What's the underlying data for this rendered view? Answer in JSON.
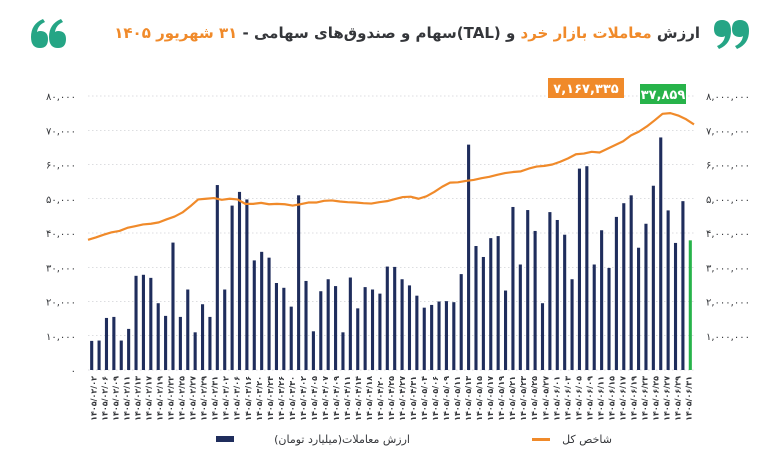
{
  "header": {
    "title_plain_start": "ارزش",
    "title_accent_1": "معاملات بازار خرد",
    "title_plain_mid": "و (TAL)سهام و صندوق‌های سهامی -",
    "title_accent_2": "۳۱ شهریور ۱۴۰۵"
  },
  "colors": {
    "accent": "#f08a2a",
    "dark": "#34363a",
    "bar": "#1f2d5c",
    "line": "#f08a2a",
    "highlight": "#27b34a",
    "grid": "#b9bcc2",
    "quote_green": "#25a585"
  },
  "icons": [
    "quote-open-icon",
    "quote-close-icon"
  ],
  "chart_data": {
    "type": "bar+line",
    "title": "ارزش معاملات بازار خرد و (TAL)سهام و صندوق‌های سهامی - ۳۱ شهریور ۱۴۰۵",
    "left_axis": {
      "ylim": [
        0,
        80000
      ],
      "ticks": [
        0,
        10000,
        20000,
        30000,
        40000,
        50000,
        60000,
        70000,
        80000
      ],
      "tick_labels": [
        "۰",
        "۱۰,۰۰۰",
        "۲۰,۰۰۰",
        "۳۰,۰۰۰",
        "۴۰,۰۰۰",
        "۵۰,۰۰۰",
        "۶۰,۰۰۰",
        "۷۰,۰۰۰",
        "۸۰,۰۰۰"
      ]
    },
    "right_axis": {
      "ylim": [
        0,
        8000000
      ],
      "ticks": [
        1000000,
        2000000,
        3000000,
        4000000,
        5000000,
        6000000,
        7000000,
        8000000
      ],
      "tick_labels": [
        "۱,۰۰۰,۰۰۰",
        "۲,۰۰۰,۰۰۰",
        "۳,۰۰۰,۰۰۰",
        "۴,۰۰۰,۰۰۰",
        "۵,۰۰۰,۰۰۰",
        "۶,۰۰۰,۰۰۰",
        "۷,۰۰۰,۰۰۰",
        "۸,۰۰۰,۰۰۰"
      ]
    },
    "grid": true,
    "x_labels": [
      "۱۴۰۵/۰۲/۰۲",
      "۱۴۰۵/۰۲/۰۶",
      "۱۴۰۵/۰۲/۰۹",
      "۱۴۰۵/۰۲/۱۱",
      "۱۴۰۵/۰۲/۱۳",
      "۱۴۰۵/۰۲/۱۷",
      "۱۴۰۵/۰۲/۱۹",
      "۱۴۰۵/۰۲/۲۲",
      "۱۴۰۵/۰۲/۲۵",
      "۱۴۰۵/۰۲/۲۷",
      "۱۴۰۵/۰۲/۲۹",
      "۱۴۰۵/۰۲/۳۱",
      "۱۴۰۵/۰۳/۰۲",
      "۱۴۰۵/۰۳/۰۶",
      "۱۴۰۵/۰۳/۱۶",
      "۱۴۰۵/۰۳/۲۰",
      "۱۴۰۵/۰۳/۲۴",
      "۱۴۰۵/۰۳/۲۶",
      "۱۴۰۵/۰۳/۳۰",
      "۱۴۰۵/۰۴/۰۲",
      "۱۴۰۵/۰۴/۰۵",
      "۱۴۰۵/۰۴/۰۷",
      "۱۴۰۵/۰۴/۰۹",
      "۱۴۰۵/۰۴/۱۱",
      "۱۴۰۵/۰۴/۱۴",
      "۱۴۰۵/۰۴/۱۸",
      "۱۴۰۵/۰۴/۲۰",
      "۱۴۰۵/۰۴/۲۵",
      "۱۴۰۵/۰۴/۲۷",
      "۱۴۰۵/۰۴/۳۱",
      "۱۴۰۵/۰۵/۰۴",
      "۱۴۰۵/۰۵/۰۶",
      "۱۴۰۵/۰۵/۰۹",
      "۱۴۰۵/۰۵/۱۱",
      "۱۴۰۵/۰۵/۱۳",
      "۱۴۰۵/۰۵/۱۵",
      "۱۴۰۵/۰۵/۱۷",
      "۱۴۰۵/۰۵/۱۹",
      "۱۴۰۵/۰۵/۲۱",
      "۱۴۰۵/۰۵/۲۳",
      "۱۴۰۵/۰۵/۲۵",
      "۱۴۰۵/۰۵/۲۷",
      "۱۴۰۵/۰۶/۰۱",
      "۱۴۰۵/۰۶/۰۳",
      "۱۴۰۵/۰۶/۰۵",
      "۱۴۰۵/۰۶/۰۹",
      "۱۴۰۵/۰۶/۱۱",
      "۱۴۰۵/۰۶/۱۵",
      "۱۴۰۵/۰۶/۱۷",
      "۱۴۰۵/۰۶/۱۹",
      "۱۴۰۵/۰۶/۲۳",
      "۱۴۰۵/۰۶/۲۵",
      "۱۴۰۵/۰۶/۲۷",
      "۱۴۰۵/۰۶/۲۹",
      "۱۴۰۵/۰۶/۳۱"
    ],
    "series": [
      {
        "name": "ارزش معاملات(میلیارد تومان)",
        "axis": "left",
        "kind": "bar",
        "values": [
          8500,
          8600,
          15200,
          15500,
          8600,
          12000,
          27500,
          27800,
          26900,
          19500,
          15800,
          37200,
          15500,
          23500,
          11000,
          19200,
          15500,
          54000,
          23500,
          48000,
          52000,
          49800,
          32000,
          34500,
          32800,
          25400,
          24000,
          18500,
          51000,
          26000,
          11300,
          23000,
          26500,
          24500,
          11000,
          27000,
          18000,
          24200,
          23500,
          22300,
          30200,
          30100,
          26500,
          24700,
          21700,
          18200,
          19000,
          20000,
          20100,
          19800,
          28000
        ],
        "note_values_after": [
          65800,
          36200,
          33000,
          38500,
          39100,
          23200,
          47600,
          30800,
          46700,
          40600,
          19500,
          46100,
          43800,
          39500,
          26500,
          58800,
          59500,
          30800,
          40800,
          29800,
          44700,
          48700,
          51000,
          35700,
          42700,
          53800,
          67900,
          46600,
          37100,
          49300,
          37859
        ]
      },
      {
        "name": "شاخص کل",
        "axis": "right",
        "kind": "line",
        "values": [
          3800000,
          3870000,
          3950000,
          4020000,
          4060000,
          4150000,
          4200000,
          4250000,
          4270000,
          4310000,
          4400000,
          4480000,
          4600000,
          4780000,
          4980000,
          5000000,
          5020000,
          4970000,
          5000000,
          4980000,
          4850000,
          4850000,
          4880000,
          4840000,
          4850000,
          4840000,
          4800000,
          4840000,
          4890000,
          4890000,
          4940000,
          4950000,
          4920000,
          4900000,
          4890000,
          4870000,
          4860000,
          4900000,
          4930000,
          4990000,
          5050000,
          5060000,
          5000000,
          5070000,
          5200000,
          5350000,
          5470000,
          5480000,
          5520000,
          5550000,
          5600000,
          5640000,
          5700000,
          5750000,
          5780000,
          5800000,
          5880000,
          5940000,
          5960000,
          6000000,
          6080000,
          6180000,
          6300000,
          6320000,
          6370000,
          6350000,
          6460000,
          6570000,
          6680000,
          6850000,
          6960000,
          7110000,
          7290000,
          7480000,
          7500000,
          7430000,
          7320000,
          7170000
        ]
      }
    ],
    "callouts": {
      "line_last_value": "۷,۱۶۷,۳۳۵",
      "bar_last_value": "۳۷,۸۵۹"
    },
    "legend": {
      "position": "bottom",
      "bar_label": "ارزش معاملات(میلیارد تومان)",
      "line_label": "شاخص کل"
    }
  }
}
